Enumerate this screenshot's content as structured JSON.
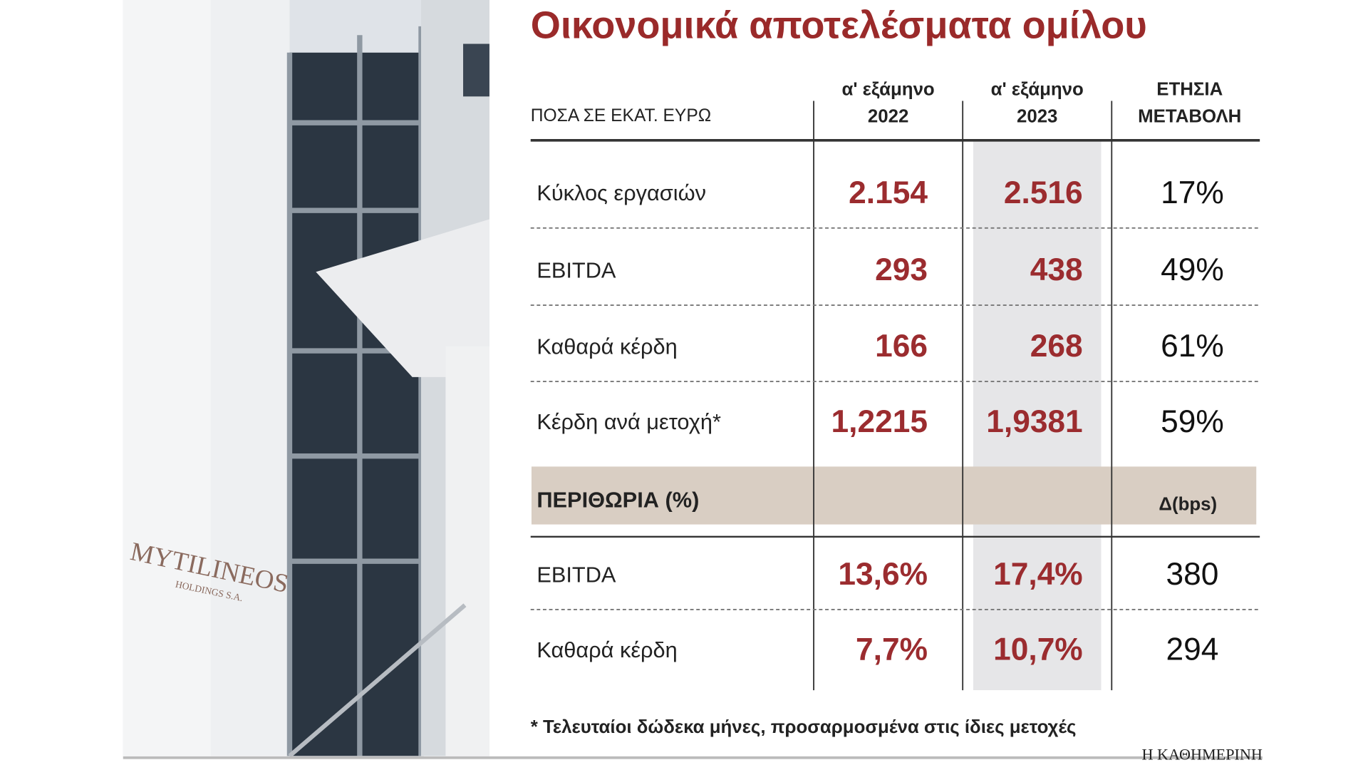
{
  "title": "Οικονομικά αποτελέσματα ομίλου",
  "photo": {
    "sign": "MYTILINEOS",
    "sign_sub": "HOLDINGS S.A."
  },
  "header": {
    "unit": "ΠΟΣΑ ΣΕ ΕΚΑΤ. ΕΥΡΩ",
    "columns": [
      [
        "α' εξάμηνο",
        "2022"
      ],
      [
        "α' εξάμηνο",
        "2023"
      ],
      [
        "ΕΤΗΣΙΑ",
        "ΜΕΤΑΒΟΛΗ"
      ]
    ]
  },
  "rows": [
    [
      "Κύκλος εργασιών",
      "2.154",
      "2.516",
      "17%"
    ],
    [
      "EBITDA",
      "293",
      "438",
      "49%"
    ],
    [
      "Καθαρά κέρδη",
      "166",
      "268",
      "61%"
    ],
    [
      "Κέρδη ανά μετοχή*",
      "1,2215",
      "1,9381",
      "59%"
    ]
  ],
  "margins": {
    "label": "ΠΕΡΙΘΩΡΙΑ (%)",
    "change_label": "Δ(bps)",
    "rows": [
      [
        "EBITDA",
        "13,6%",
        "17,4%",
        "380"
      ],
      [
        "Καθαρά κέρδη",
        "7,7%",
        "10,7%",
        "294"
      ]
    ]
  },
  "footnote": "* Τελευταίοι δώδεκα μήνες, προσαρμοσμένα στις ίδιες μετοχές",
  "source": "Η ΚΑΘΗΜΕΡΙΝΗ"
}
